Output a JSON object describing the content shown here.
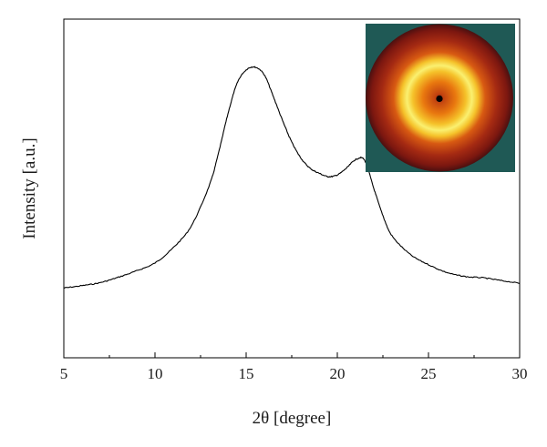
{
  "chart_data": {
    "type": "line",
    "title": "",
    "xlabel": "2θ [degree]",
    "ylabel": "Intensity [a.u.]",
    "xlim": [
      5,
      30
    ],
    "ylim": [
      0,
      1
    ],
    "x_ticks": [
      5,
      10,
      15,
      20,
      25,
      30
    ],
    "y_ticks": [],
    "grid": false,
    "legend": "none",
    "line_color": "#000000",
    "series": [
      {
        "x": [
          5,
          6,
          7,
          8,
          9,
          10,
          11,
          12,
          13,
          13.5,
          14,
          14.5,
          15,
          15.5,
          16,
          16.5,
          17,
          17.5,
          18,
          18.5,
          19,
          19.5,
          20,
          20.5,
          21,
          21.5,
          22,
          22.5,
          23,
          24,
          25,
          26,
          27,
          28,
          29,
          30
        ],
        "y": [
          0.206,
          0.213,
          0.222,
          0.238,
          0.257,
          0.28,
          0.325,
          0.39,
          0.512,
          0.608,
          0.72,
          0.81,
          0.85,
          0.858,
          0.835,
          0.77,
          0.7,
          0.637,
          0.59,
          0.56,
          0.545,
          0.535,
          0.54,
          0.56,
          0.585,
          0.583,
          0.5,
          0.42,
          0.36,
          0.305,
          0.275,
          0.252,
          0.24,
          0.236,
          0.228,
          0.22
        ]
      }
    ],
    "inset": {
      "type": "image",
      "description_colors": {
        "background": "#1f5955",
        "outer": "#8c1a10",
        "mid": "#d65a10",
        "ring": "#f7e020",
        "inner": "#e8700f",
        "center": "#000000"
      }
    }
  }
}
